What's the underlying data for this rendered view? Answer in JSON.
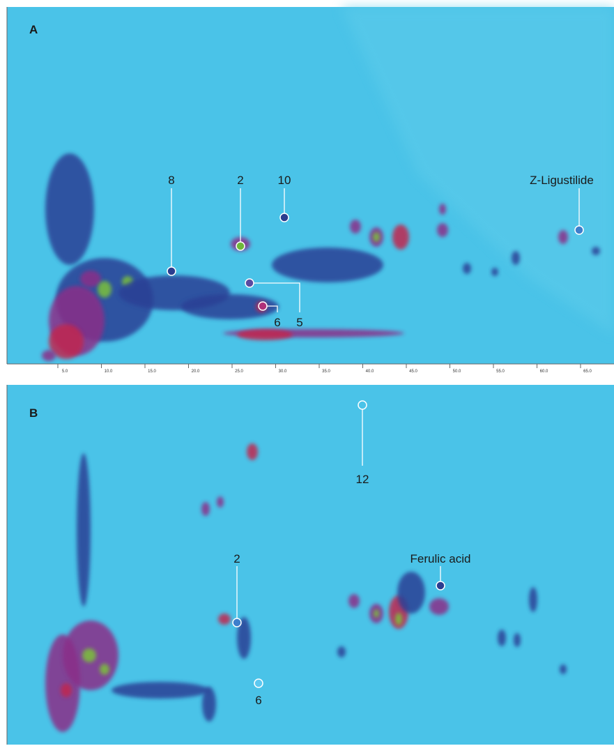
{
  "panels": [
    {
      "label": "A",
      "x_tick_labels": [
        "5.0",
        "10.0",
        "15.0",
        "20.0",
        "25.0",
        "30.0",
        "35.0",
        "40.0",
        "45.0",
        "50.0",
        "55.0",
        "60.0",
        "65.0"
      ],
      "annotations": [
        "8",
        "2",
        "10",
        "Z-Ligustilide",
        "5",
        "6"
      ]
    },
    {
      "label": "B",
      "annotations": [
        "12",
        "2",
        "Ferulic acid",
        "6"
      ]
    }
  ]
}
